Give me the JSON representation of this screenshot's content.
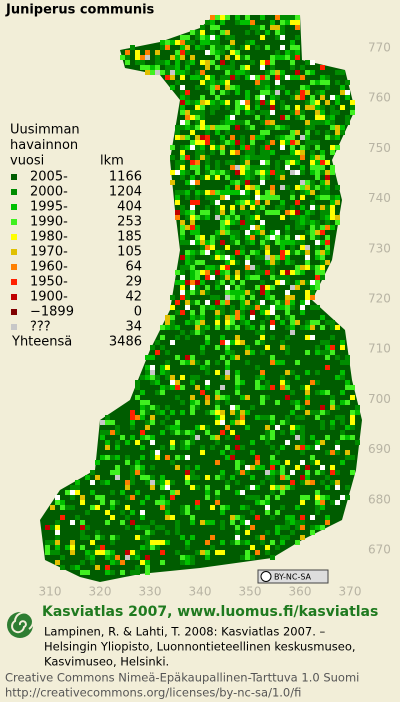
{
  "title": "Juniperus communis",
  "legend": {
    "heading": [
      "Uusimman",
      "havainnon",
      "vuosi"
    ],
    "count_heading": "lkm",
    "entries": [
      {
        "label": "2005-",
        "count": 1166,
        "color": "#005c00"
      },
      {
        "label": "2000-",
        "count": 1204,
        "color": "#008c00"
      },
      {
        "label": "1995-",
        "count": 404,
        "color": "#00c000"
      },
      {
        "label": "1990-",
        "count": 253,
        "color": "#40f020"
      },
      {
        "label": "1980-",
        "count": 185,
        "color": "#ffff00"
      },
      {
        "label": "1970-",
        "count": 105,
        "color": "#e0c000"
      },
      {
        "label": "1960-",
        "count": 64,
        "color": "#ff8000"
      },
      {
        "label": "1950-",
        "count": 29,
        "color": "#ff2000"
      },
      {
        "label": "1900-",
        "count": 42,
        "color": "#c00000"
      },
      {
        "label": "−1899",
        "count": 0,
        "color": "#800000"
      },
      {
        "label": "???",
        "count": 34,
        "color": "#c8c8c8"
      }
    ],
    "total_label": "Yhteensä",
    "total": 3486
  },
  "y_labels": [
    770,
    760,
    750,
    740,
    730,
    720,
    710,
    700,
    690,
    680,
    670
  ],
  "x_labels": [
    310,
    320,
    330,
    340,
    350,
    360,
    370
  ],
  "badge": "BY-NC-SA",
  "footer": {
    "headline": "Kasviatlas 2007, www.luomus.fi/kasviatlas",
    "citation": [
      "Lampinen, R. & Lahti, T. 2008: Kasviatlas 2007. –",
      "Helsingin Yliopisto, Luonnontieteellinen keskusmuseo,",
      "Kasvimuseo, Helsinki."
    ],
    "license": [
      "Creative Commons Nimeä-Epäkaupallinen-Tarttuva 1.0 Suomi",
      "http://creativecommons.org/licenses/by-nc-sa/1.0/fi"
    ]
  }
}
